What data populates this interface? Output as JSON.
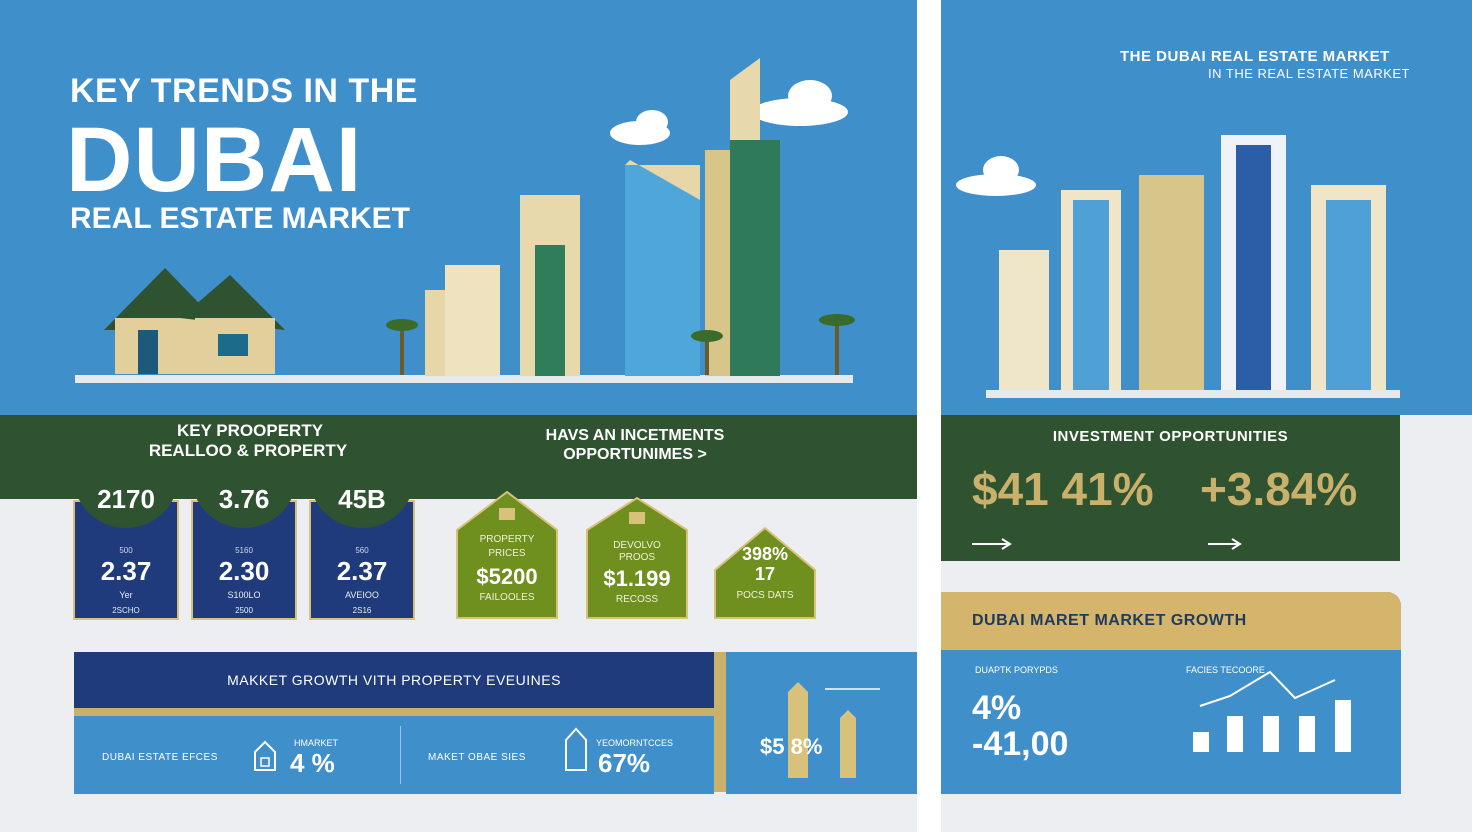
{
  "left_hero": {
    "line1": "KEY TRENDS IN THE",
    "line2": "DUBAI",
    "line3": "REAL ESTATE MARKET"
  },
  "right_hero": {
    "title1": "THE DUBAI  REAL ESTATE MARKET",
    "title2": "IN THE REAL ESTATE MARKET"
  },
  "band": {
    "label1": "KEY PROOPERTY",
    "label2": "REALLOO & PROPERTY",
    "label3": "HAVS  AN  INCETMENTS",
    "label4": "OPPORTUNIMES >"
  },
  "stats": [
    {
      "top": "2170",
      "mid_label": "500",
      "big": "2.37",
      "small1": "Yer",
      "small2": "2SCHO"
    },
    {
      "top": "3.76",
      "mid_label": "5160",
      "big": "2.30",
      "small1": "S100LO",
      "small2": "2500"
    },
    {
      "top": "45B",
      "mid_label": "560",
      "big": "2.37",
      "small1": "AVEIOO",
      "small2": "2S16"
    }
  ],
  "houses": [
    {
      "label1": "PROPERTY",
      "label2": "PRICES",
      "big": "$5200",
      "label3": "FAILOOLES"
    },
    {
      "label1": "DEVOLVO",
      "label2": "PROOS",
      "big": "$1.199",
      "label3": "RECOSS"
    },
    {
      "label1": "",
      "label2": "",
      "big": "398%\n17",
      "label3": "POCS DATS"
    }
  ],
  "market_growth": {
    "bar_text": "MAKKET GROWTH VITH PROPERTY EVEUINES",
    "item1_label": "DUBAI ESTATE EFCES",
    "item1_head": "HMARKET",
    "item1_value": "4 %",
    "item2_label": "MAKET OBAE SIES",
    "item2_head": "YEOMORNTCCES",
    "item2_value": "67%",
    "right_value": "$5 8%"
  },
  "investment": {
    "title": "INVESTMENT OPPORTUNITIES",
    "pct1": "$41 41%",
    "pct2": "+3.84%"
  },
  "growth": {
    "head": "DUBAI MARET MARKET GROWTH",
    "left_label": "DUAPTK PORYPDS",
    "value1": "4%",
    "value2": "-41,00",
    "right_label": "FACIES TECOORE"
  },
  "colors": {
    "sky": "#3f8fcb",
    "green": "#2f5230",
    "navy": "#1f3b7c",
    "olive": "#6f8f1f",
    "gold": "#c9b06b"
  }
}
